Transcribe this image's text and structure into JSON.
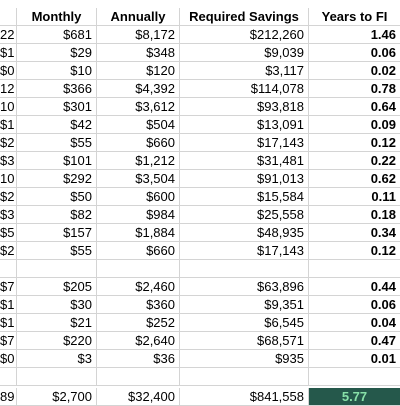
{
  "columns": [
    "Monthly",
    "Annually",
    "Required Savings",
    "Years to FI"
  ],
  "rows": [
    {
      "a": "22",
      "m": "$681",
      "y": "$8,172",
      "s": "$212,260",
      "f": "1.46"
    },
    {
      "a": "$1",
      "m": "$29",
      "y": "$348",
      "s": "$9,039",
      "f": "0.06"
    },
    {
      "a": "$0",
      "m": "$10",
      "y": "$120",
      "s": "$3,117",
      "f": "0.02"
    },
    {
      "a": "12",
      "m": "$366",
      "y": "$4,392",
      "s": "$114,078",
      "f": "0.78"
    },
    {
      "a": "10",
      "m": "$301",
      "y": "$3,612",
      "s": "$93,818",
      "f": "0.64"
    },
    {
      "a": "$1",
      "m": "$42",
      "y": "$504",
      "s": "$13,091",
      "f": "0.09"
    },
    {
      "a": "$2",
      "m": "$55",
      "y": "$660",
      "s": "$17,143",
      "f": "0.12"
    },
    {
      "a": "$3",
      "m": "$101",
      "y": "$1,212",
      "s": "$31,481",
      "f": "0.22"
    },
    {
      "a": "10",
      "m": "$292",
      "y": "$3,504",
      "s": "$91,013",
      "f": "0.62"
    },
    {
      "a": "$2",
      "m": "$50",
      "y": "$600",
      "s": "$15,584",
      "f": "0.11"
    },
    {
      "a": "$3",
      "m": "$82",
      "y": "$984",
      "s": "$25,558",
      "f": "0.18"
    },
    {
      "a": "$5",
      "m": "$157",
      "y": "$1,884",
      "s": "$48,935",
      "f": "0.34"
    },
    {
      "a": "$2",
      "m": "$55",
      "y": "$660",
      "s": "$17,143",
      "f": "0.12"
    },
    {
      "a": "",
      "m": "",
      "y": "",
      "s": "",
      "f": ""
    },
    {
      "a": "$7",
      "m": "$205",
      "y": "$2,460",
      "s": "$63,896",
      "f": "0.44"
    },
    {
      "a": "$1",
      "m": "$30",
      "y": "$360",
      "s": "$9,351",
      "f": "0.06"
    },
    {
      "a": "$1",
      "m": "$21",
      "y": "$252",
      "s": "$6,545",
      "f": "0.04"
    },
    {
      "a": "$7",
      "m": "$220",
      "y": "$2,640",
      "s": "$68,571",
      "f": "0.47"
    },
    {
      "a": "$0",
      "m": "$3",
      "y": "$36",
      "s": "$935",
      "f": "0.01"
    },
    {
      "a": "",
      "m": "",
      "y": "",
      "s": "",
      "f": ""
    }
  ],
  "total": {
    "a": "89",
    "m": "$2,700",
    "y": "$32,400",
    "s": "$841,558",
    "f": "5.77"
  },
  "colors": {
    "total_fill": "#25584b",
    "total_text": "#88e0a8",
    "gridline": "#d4d4d4"
  }
}
